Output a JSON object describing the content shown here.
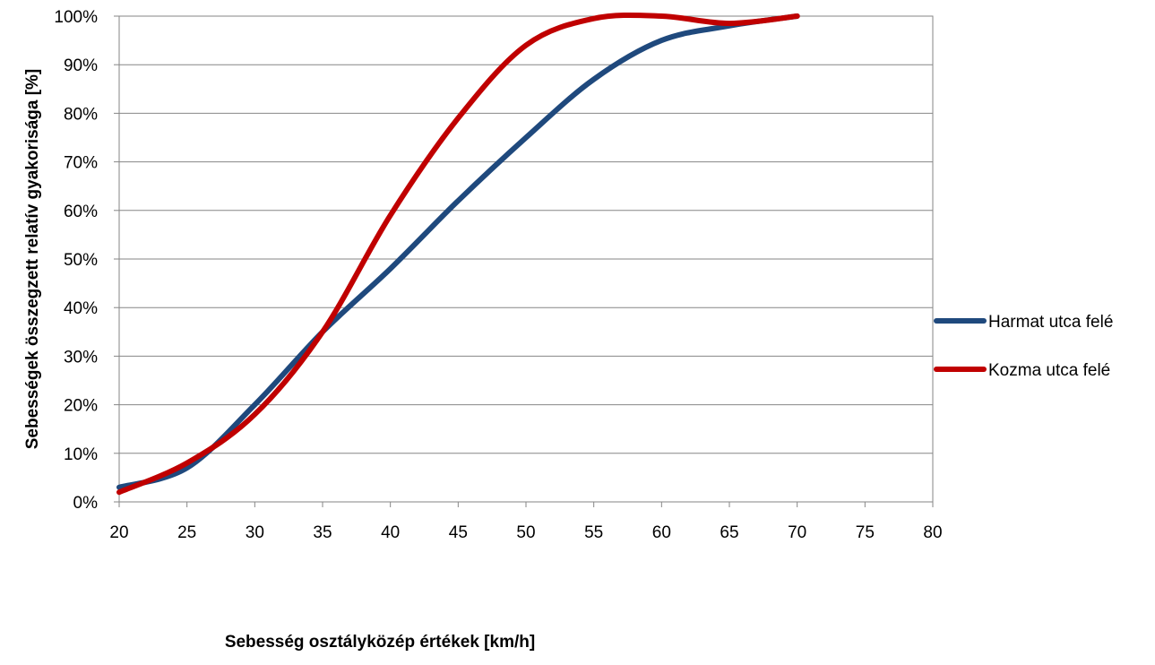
{
  "chart_data": {
    "type": "line",
    "title": "",
    "xlabel": "Sebesség osztályközép értékek [km/h]",
    "ylabel": "Sebességek összegzett relatív gyakorisága [%]",
    "xlim": [
      20,
      80
    ],
    "ylim": [
      0,
      100
    ],
    "x_ticks": [
      "20",
      "25",
      "30",
      "35",
      "40",
      "45",
      "50",
      "55",
      "60",
      "65",
      "70",
      "75",
      "80"
    ],
    "y_ticks": [
      "0%",
      "10%",
      "20%",
      "30%",
      "40%",
      "50%",
      "60%",
      "70%",
      "80%",
      "90%",
      "100%"
    ],
    "grid": "horizontal",
    "legend_position": "right",
    "series": [
      {
        "name": "Harmat utca felé",
        "color": "#1f497d",
        "x": [
          20,
          25,
          30,
          35,
          40,
          45,
          50,
          55,
          60,
          65,
          70
        ],
        "y": [
          3,
          7,
          20,
          35,
          48,
          62,
          75,
          87,
          95,
          98,
          100
        ]
      },
      {
        "name": "Kozma utca felé",
        "color": "#c00000",
        "x": [
          20,
          25,
          30,
          35,
          40,
          45,
          50,
          55,
          60,
          65,
          70
        ],
        "y": [
          2,
          8,
          18,
          35,
          59,
          79,
          94,
          99.5,
          100,
          98.5,
          100
        ]
      }
    ]
  }
}
